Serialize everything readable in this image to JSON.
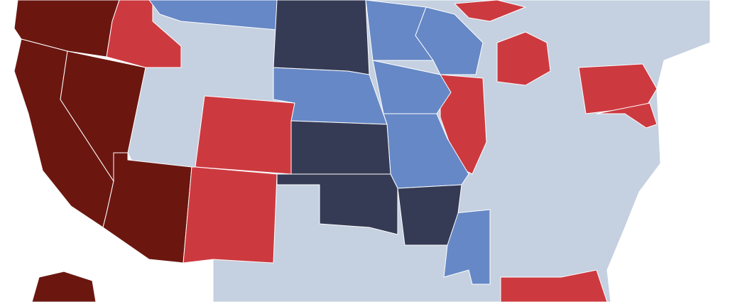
{
  "map": {
    "fills": [
      "#c5d0e0",
      "#6b1710",
      "#cc3a40",
      "#6688c6",
      "#363b55"
    ]
  }
}
